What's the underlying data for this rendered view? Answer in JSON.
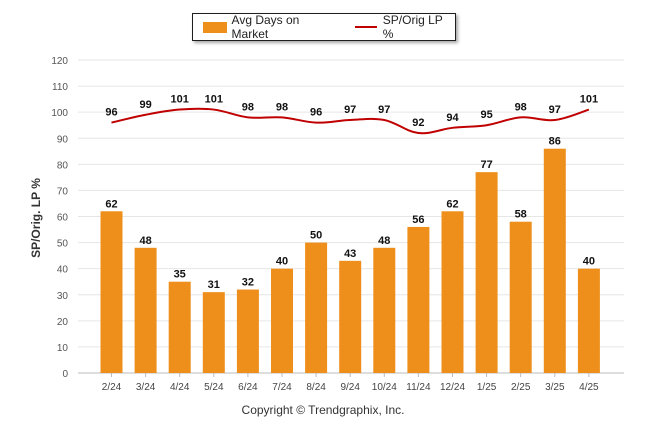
{
  "chart_data": {
    "type": "bar",
    "categories": [
      "2/24",
      "3/24",
      "4/24",
      "5/24",
      "6/24",
      "7/24",
      "8/24",
      "9/24",
      "10/24",
      "11/24",
      "12/24",
      "1/25",
      "2/25",
      "3/25",
      "4/25"
    ],
    "series": [
      {
        "name": "Avg Days on Market",
        "type": "bar",
        "color": "#EE8F1C",
        "values": [
          62,
          48,
          35,
          31,
          32,
          40,
          50,
          43,
          48,
          56,
          62,
          77,
          58,
          86,
          40
        ]
      },
      {
        "name": "SP/Orig LP %",
        "type": "line",
        "color": "#C00000",
        "values": [
          96,
          99,
          101,
          101,
          98,
          98,
          96,
          97,
          97,
          92,
          94,
          95,
          98,
          97,
          101
        ]
      }
    ],
    "ylabel": "SP/Orig. LP %",
    "ylim": [
      0,
      120
    ],
    "yticks": [
      0,
      10,
      20,
      30,
      40,
      50,
      60,
      70,
      80,
      90,
      100,
      110,
      120
    ],
    "grid": true,
    "legend_position": "top-center",
    "data_labels": true
  },
  "copyright": "Copyright © Trendgraphix, Inc."
}
